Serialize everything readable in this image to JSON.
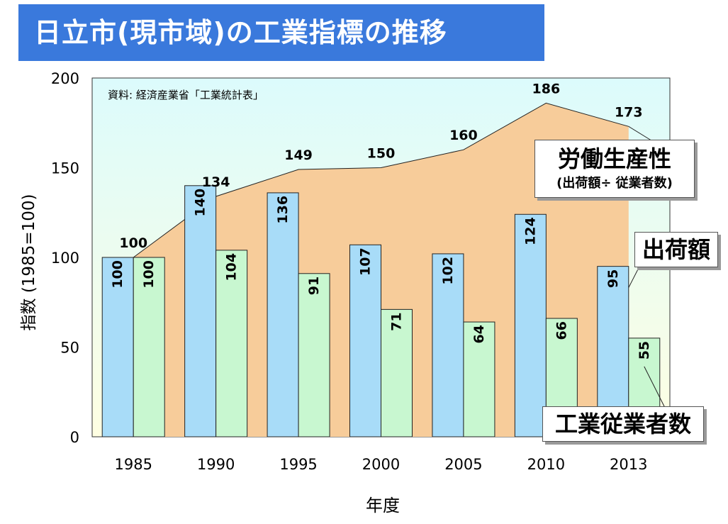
{
  "title": "日立市(現市域)の工業指標の推移",
  "source": "資料: 経済産業省「工業統計表」",
  "chart_data": {
    "type": "bar",
    "title": "日立市(現市域)の工業指標の推移",
    "xlabel": "年度",
    "ylabel": "指数 (1985=100)",
    "ylim": [
      0,
      200
    ],
    "yticks": [
      "0",
      "50",
      "100",
      "150",
      "200"
    ],
    "categories": [
      "1985",
      "1990",
      "1995",
      "2000",
      "2005",
      "2010",
      "2013"
    ],
    "series": [
      {
        "name": "出荷額",
        "kind": "bar",
        "color": "#a8dcf8",
        "values": [
          100,
          140,
          136,
          107,
          102,
          124,
          95
        ]
      },
      {
        "name": "工業従業者数",
        "kind": "bar",
        "color": "#c8f7d0",
        "values": [
          100,
          104,
          91,
          71,
          64,
          66,
          55
        ]
      },
      {
        "name": "労働生産性",
        "kind": "area",
        "color": "#f7cc9a",
        "values": [
          100,
          134,
          149,
          150,
          160,
          186,
          173
        ]
      }
    ],
    "annotations": {
      "productivity": "労働生産性",
      "productivity_sub": "(出荷額÷ 従業者数)",
      "shipments": "出荷額",
      "employees": "工業従業者数"
    },
    "grid": false,
    "plot_background": "gradient light cyan to light yellow"
  }
}
